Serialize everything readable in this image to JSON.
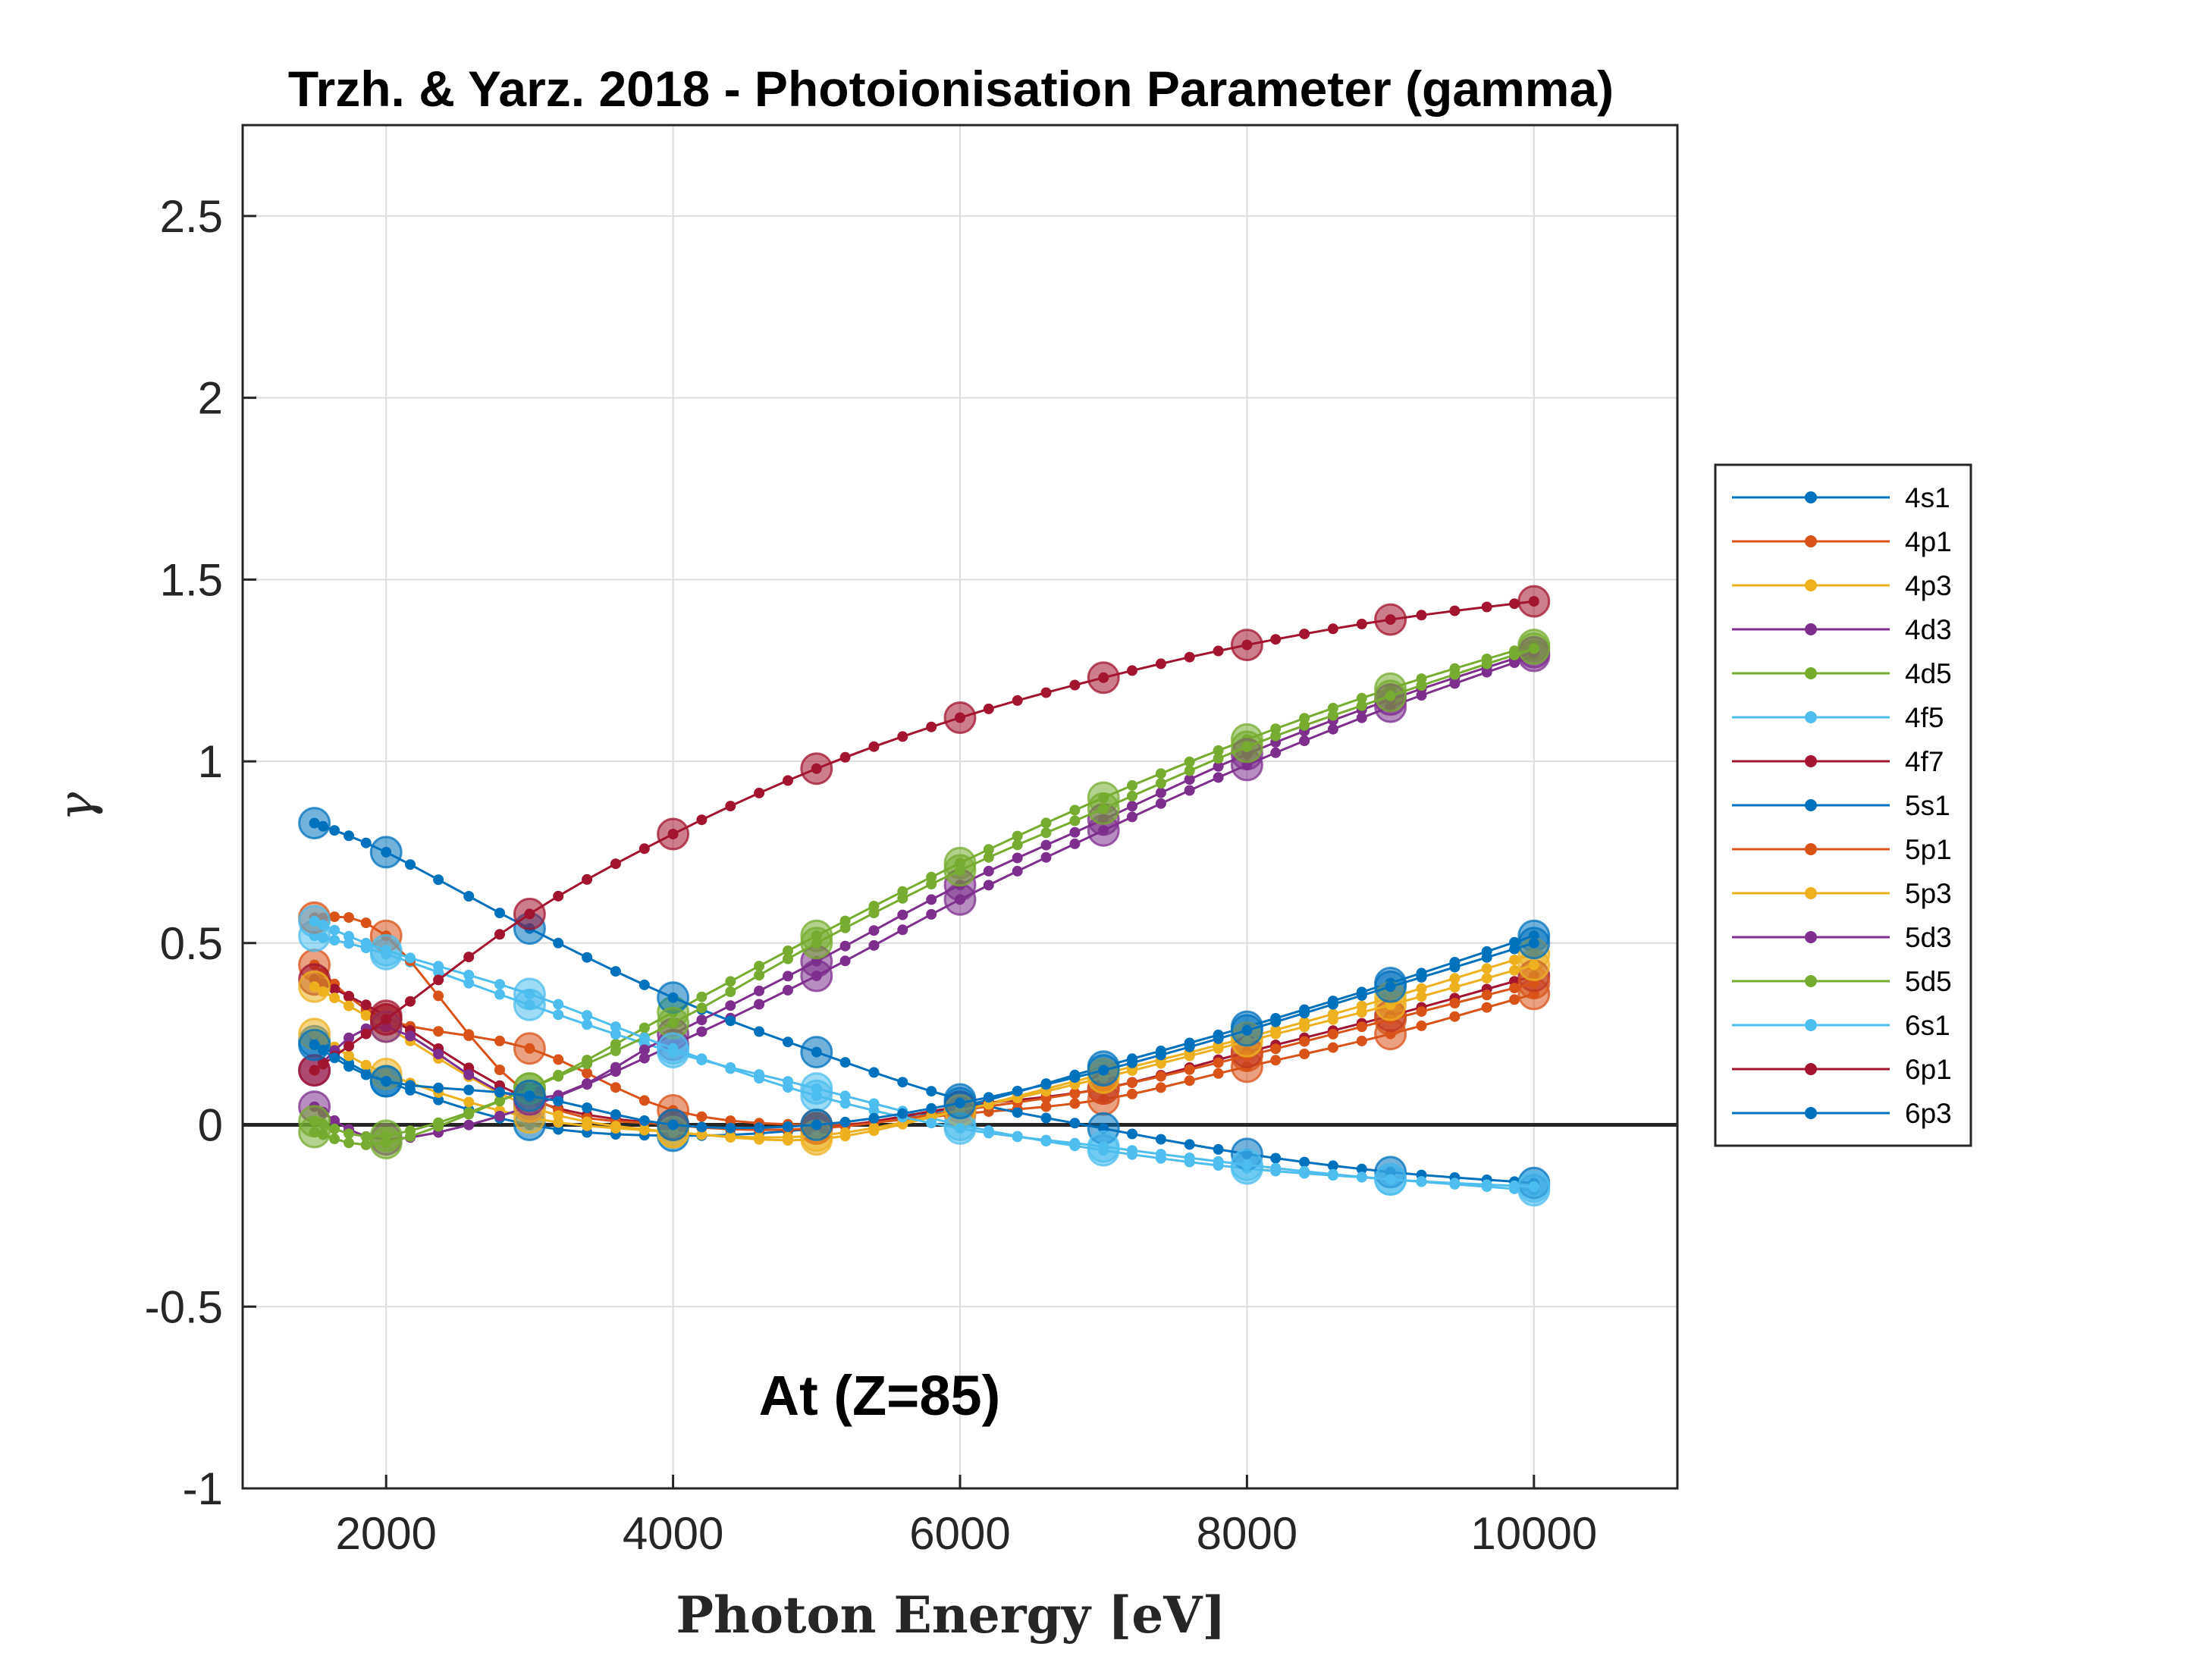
{
  "chart_data": {
    "type": "line",
    "title": "Trzh. & Yarz. 2018 - Photoionisation Parameter (gamma)",
    "xlabel": "Photon Energy [eV]",
    "ylabel": "γ",
    "annotation": "At (Z=85)",
    "xlim": [
      1000,
      11000
    ],
    "ylim": [
      -1,
      2.75
    ],
    "xticks": [
      2000,
      4000,
      6000,
      8000,
      10000
    ],
    "xtick_labels": [
      "2000",
      "4000",
      "6000",
      "8000",
      "10000"
    ],
    "yticks": [
      -1,
      -0.5,
      0,
      0.5,
      1,
      1.5,
      2,
      2.5
    ],
    "ytick_labels": [
      "-1",
      "-0.5",
      "0",
      "0.5",
      "1",
      "1.5",
      "2",
      "2.5"
    ],
    "grid": true,
    "zero_line": true,
    "legend_position": "outside-right",
    "x": [
      1500,
      2000,
      3000,
      4000,
      5000,
      6000,
      7000,
      8000,
      9000,
      10000
    ],
    "series": [
      {
        "name": "4s1",
        "color": "#0072BD",
        "values": [
          0.23,
          0.12,
          0.0,
          -0.03,
          -0.01,
          0.05,
          0.16,
          0.27,
          0.39,
          0.52
        ]
      },
      {
        "name": "4p1",
        "color": "#D95319",
        "values": [
          0.44,
          0.29,
          0.21,
          0.04,
          0.0,
          0.03,
          0.07,
          0.16,
          0.25,
          0.36
        ]
      },
      {
        "name": "4p3",
        "color": "#EDB120",
        "values": [
          0.25,
          0.14,
          0.02,
          -0.02,
          -0.04,
          0.04,
          0.14,
          0.24,
          0.35,
          0.47
        ]
      },
      {
        "name": "4d3",
        "color": "#7E2F8E",
        "values": [
          0.05,
          -0.04,
          0.05,
          0.22,
          0.41,
          0.62,
          0.81,
          0.99,
          1.15,
          1.29
        ]
      },
      {
        "name": "4d5",
        "color": "#77AC30",
        "values": [
          0.01,
          -0.03,
          0.1,
          0.31,
          0.52,
          0.72,
          0.9,
          1.06,
          1.2,
          1.32
        ]
      },
      {
        "name": "4f5",
        "color": "#4DBEEE",
        "values": [
          0.52,
          0.47,
          0.33,
          0.2,
          0.1,
          0.0,
          -0.07,
          -0.12,
          -0.15,
          -0.18
        ]
      },
      {
        "name": "4f7",
        "color": "#A2142F",
        "values": [
          0.4,
          0.3,
          0.07,
          0.0,
          -0.01,
          0.05,
          0.1,
          0.2,
          0.3,
          0.41
        ]
      },
      {
        "name": "5s1",
        "color": "#0072BD",
        "values": [
          0.83,
          0.75,
          0.54,
          0.35,
          0.2,
          0.07,
          -0.01,
          -0.08,
          -0.13,
          -0.16
        ]
      },
      {
        "name": "5p1",
        "color": "#D95319",
        "values": [
          0.57,
          0.52,
          0.08,
          0.0,
          -0.01,
          0.04,
          0.1,
          0.19,
          0.29,
          0.39
        ]
      },
      {
        "name": "5p3",
        "color": "#EDB120",
        "values": [
          0.38,
          0.27,
          0.05,
          -0.02,
          -0.03,
          0.04,
          0.13,
          0.23,
          0.33,
          0.44
        ]
      },
      {
        "name": "5d3",
        "color": "#7E2F8E",
        "values": [
          0.15,
          0.27,
          0.07,
          0.25,
          0.45,
          0.66,
          0.84,
          1.02,
          1.17,
          1.3
        ]
      },
      {
        "name": "5d5",
        "color": "#77AC30",
        "values": [
          -0.02,
          -0.05,
          0.1,
          0.28,
          0.5,
          0.7,
          0.87,
          1.04,
          1.18,
          1.31
        ]
      },
      {
        "name": "6s1",
        "color": "#4DBEEE",
        "values": [
          0.56,
          0.48,
          0.36,
          0.21,
          0.08,
          -0.01,
          -0.06,
          -0.11,
          -0.15,
          -0.17
        ]
      },
      {
        "name": "6p1",
        "color": "#A2142F",
        "values": [
          0.15,
          0.29,
          0.58,
          0.8,
          0.98,
          1.12,
          1.23,
          1.32,
          1.39,
          1.44
        ]
      },
      {
        "name": "6p3",
        "color": "#0072BD",
        "values": [
          0.22,
          0.12,
          0.08,
          0.0,
          0.0,
          0.06,
          0.15,
          0.26,
          0.38,
          0.5
        ]
      }
    ]
  }
}
